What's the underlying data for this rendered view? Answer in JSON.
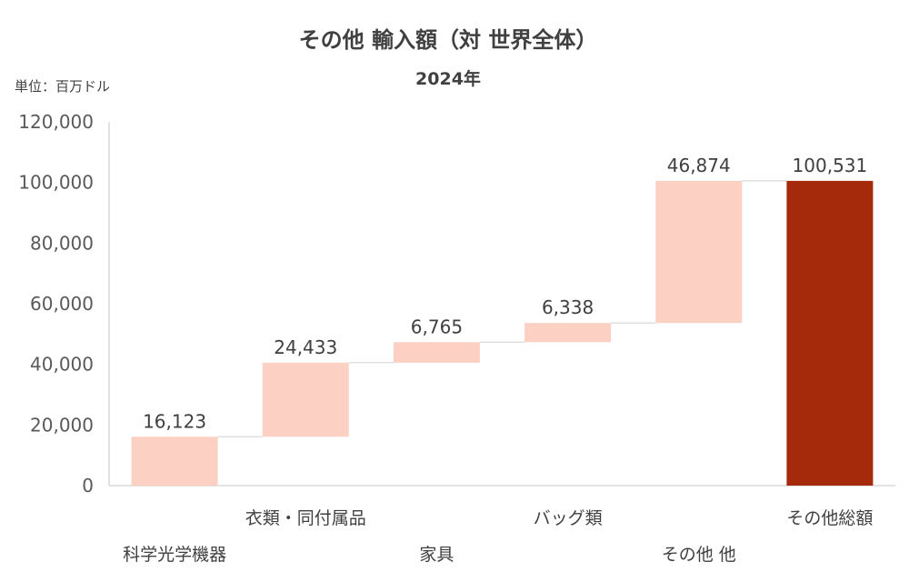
{
  "chart_data": {
    "type": "bar",
    "subtype": "waterfall",
    "title": "その他 輸入額（対 世界全体）",
    "subtitle": "2024年",
    "unit_label": "単位：百万ドル",
    "ylim": [
      0,
      120000
    ],
    "yticks": [
      "0",
      "20,000",
      "40,000",
      "60,000",
      "80,000",
      "100,000",
      "120,000"
    ],
    "ytick_values": [
      0,
      20000,
      40000,
      60000,
      80000,
      100000,
      120000
    ],
    "categories": [
      "科学光学機器",
      "衣類・同付属品",
      "家具",
      "バッグ類",
      "その他 他",
      "その他総額"
    ],
    "values": [
      16123,
      24433,
      6765,
      6338,
      46874,
      100531
    ],
    "data_labels": [
      "16,123",
      "24,433",
      "6,765",
      "6,338",
      "46,874",
      "100,531"
    ],
    "total_index": 5,
    "colors": {
      "increment": "#fdd0c4",
      "total": "#a52a0b",
      "axis": "#d9d9d9",
      "connector": "#d9d9d9"
    },
    "grid": false,
    "legend": "none"
  }
}
